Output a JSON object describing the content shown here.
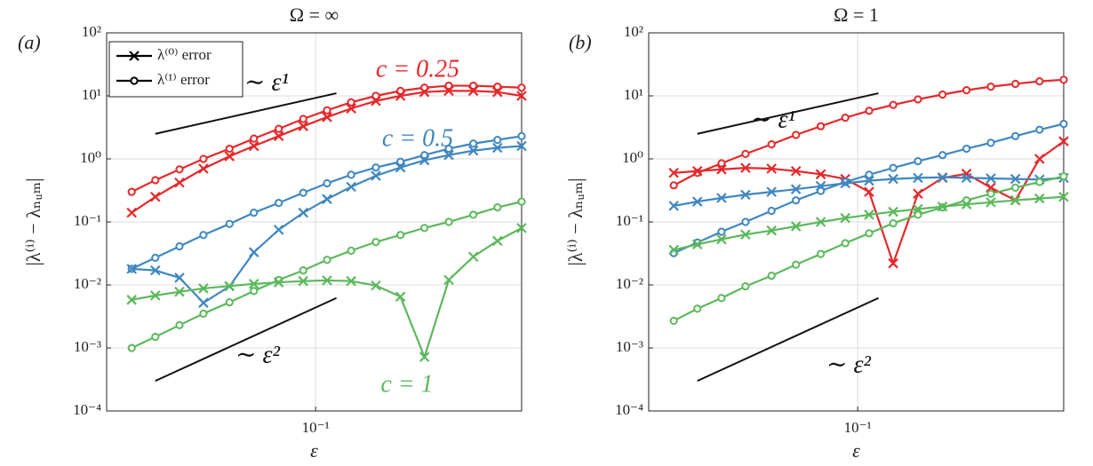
{
  "chart_data": [
    {
      "type": "line",
      "panel_label": "(a)",
      "title": "Ω = ∞",
      "xlabel": "ε",
      "ylabel": "|λ⁽ⁱ⁾ − λₙᵤₘ|",
      "log_x": true,
      "log_y": true,
      "grid": true,
      "xlim": [
        0.0245,
        0.4
      ],
      "ylim": [
        0.0001,
        100
      ],
      "xticks": [
        {
          "value": 0.1,
          "label": "10⁻¹"
        }
      ],
      "yticks": [
        {
          "value": 0.0001,
          "label": "10⁻⁴"
        },
        {
          "value": 0.001,
          "label": "10⁻³"
        },
        {
          "value": 0.01,
          "label": "10⁻²"
        },
        {
          "value": 0.1,
          "label": "10⁻¹"
        },
        {
          "value": 1,
          "label": "10⁰"
        },
        {
          "value": 10,
          "label": "10¹"
        },
        {
          "value": 100,
          "label": "10²"
        }
      ],
      "legend_position": "upper left",
      "legend": [
        {
          "label": "λ⁽⁰⁾ error",
          "marker": "x"
        },
        {
          "label": "λ⁽¹⁾ error",
          "marker": "o"
        }
      ],
      "annotations": [
        {
          "text": "∼ ε¹"
        },
        {
          "text": "c = 0.25",
          "color": "#e5282a"
        },
        {
          "text": "c = 0.5",
          "color": "#3f87c0"
        },
        {
          "text": "∼ ε²"
        },
        {
          "text": "c = 1",
          "color": "#5cb85c"
        }
      ],
      "guides": [
        {
          "x": [
            0.034,
            0.115
          ],
          "y": [
            2.5,
            11
          ]
        },
        {
          "x": [
            0.034,
            0.115
          ],
          "y": [
            0.0003,
            0.0062
          ]
        }
      ],
      "x": [
        0.029,
        0.034,
        0.04,
        0.047,
        0.056,
        0.066,
        0.078,
        0.092,
        0.108,
        0.127,
        0.15,
        0.177,
        0.208,
        0.245,
        0.289,
        0.34,
        0.4
      ],
      "series": [
        {
          "color": "#e5282a",
          "marker": "o",
          "values": [
            0.3,
            0.46,
            0.68,
            1.0,
            1.45,
            2.1,
            3.0,
            4.3,
            5.9,
            7.9,
            10,
            12,
            13.5,
            14.5,
            14.5,
            14,
            13.5
          ]
        },
        {
          "color": "#e5282a",
          "marker": "x",
          "values": [
            0.14,
            0.25,
            0.42,
            0.7,
            1.1,
            1.6,
            2.3,
            3.3,
            4.6,
            6.3,
            8.3,
            10,
            11.5,
            12,
            12,
            11.5,
            10
          ]
        },
        {
          "color": "#3f87c0",
          "marker": "o",
          "values": [
            0.018,
            0.027,
            0.041,
            0.062,
            0.093,
            0.14,
            0.2,
            0.29,
            0.41,
            0.56,
            0.73,
            0.9,
            1.15,
            1.45,
            1.75,
            2.0,
            2.3
          ]
        },
        {
          "color": "#3f87c0",
          "marker": "x",
          "values": [
            0.018,
            0.017,
            0.013,
            0.0052,
            0.0095,
            0.033,
            0.075,
            0.14,
            0.23,
            0.36,
            0.54,
            0.73,
            0.95,
            1.15,
            1.35,
            1.5,
            1.6
          ]
        },
        {
          "color": "#5cb85c",
          "marker": "o",
          "values": [
            0.001,
            0.0015,
            0.0023,
            0.0035,
            0.0053,
            0.008,
            0.012,
            0.017,
            0.025,
            0.035,
            0.048,
            0.062,
            0.08,
            0.1,
            0.13,
            0.17,
            0.21
          ]
        },
        {
          "color": "#5cb85c",
          "marker": "x",
          "values": [
            0.0058,
            0.0068,
            0.0078,
            0.0088,
            0.0096,
            0.0104,
            0.011,
            0.0115,
            0.0118,
            0.0115,
            0.0098,
            0.0065,
            0.00072,
            0.012,
            0.028,
            0.05,
            0.08
          ]
        }
      ]
    },
    {
      "type": "line",
      "panel_label": "(b)",
      "title": "Ω = 1",
      "xlabel": "ε",
      "ylabel": "|λ⁽ⁱ⁾ − λₙᵤₘ|",
      "log_x": true,
      "log_y": true,
      "grid": true,
      "xlim": [
        0.0245,
        0.4
      ],
      "ylim": [
        0.0001,
        100
      ],
      "xticks": [
        {
          "value": 0.1,
          "label": "10⁻¹"
        }
      ],
      "yticks": [
        {
          "value": 0.0001,
          "label": "10⁻⁴"
        },
        {
          "value": 0.001,
          "label": "10⁻³"
        },
        {
          "value": 0.01,
          "label": "10⁻²"
        },
        {
          "value": 0.1,
          "label": "10⁻¹"
        },
        {
          "value": 1,
          "label": "10⁰"
        },
        {
          "value": 10,
          "label": "10¹"
        },
        {
          "value": 100,
          "label": "10²"
        }
      ],
      "annotations": [
        {
          "text": "∼ ε¹"
        },
        {
          "text": "∼ ε²"
        }
      ],
      "guides": [
        {
          "x": [
            0.034,
            0.115
          ],
          "y": [
            2.5,
            11
          ]
        },
        {
          "x": [
            0.034,
            0.115
          ],
          "y": [
            0.0003,
            0.0062
          ]
        }
      ],
      "x": [
        0.029,
        0.034,
        0.04,
        0.047,
        0.056,
        0.066,
        0.078,
        0.092,
        0.108,
        0.127,
        0.15,
        0.177,
        0.208,
        0.245,
        0.289,
        0.34,
        0.4
      ],
      "series": [
        {
          "color": "#e5282a",
          "marker": "o",
          "values": [
            0.38,
            0.6,
            0.85,
            1.2,
            1.7,
            2.4,
            3.3,
            4.5,
            5.8,
            7.2,
            8.8,
            10.5,
            12.3,
            14,
            15.5,
            17,
            18
          ]
        },
        {
          "color": "#e5282a",
          "marker": "x",
          "values": [
            0.6,
            0.64,
            0.68,
            0.72,
            0.7,
            0.64,
            0.57,
            0.48,
            0.3,
            0.022,
            0.28,
            0.5,
            0.58,
            0.35,
            0.22,
            1.0,
            1.9
          ]
        },
        {
          "color": "#3f87c0",
          "marker": "o",
          "values": [
            0.032,
            0.047,
            0.07,
            0.1,
            0.15,
            0.22,
            0.31,
            0.43,
            0.56,
            0.72,
            0.92,
            1.15,
            1.45,
            1.8,
            2.3,
            2.9,
            3.6
          ]
        },
        {
          "color": "#3f87c0",
          "marker": "x",
          "values": [
            0.18,
            0.21,
            0.24,
            0.27,
            0.3,
            0.33,
            0.37,
            0.41,
            0.45,
            0.48,
            0.5,
            0.51,
            0.5,
            0.49,
            0.48,
            0.47,
            0.5
          ]
        },
        {
          "color": "#5cb85c",
          "marker": "o",
          "values": [
            0.0027,
            0.0042,
            0.0062,
            0.0095,
            0.014,
            0.021,
            0.031,
            0.046,
            0.066,
            0.095,
            0.13,
            0.17,
            0.22,
            0.28,
            0.35,
            0.43,
            0.53
          ]
        },
        {
          "color": "#5cb85c",
          "marker": "x",
          "values": [
            0.036,
            0.044,
            0.053,
            0.063,
            0.073,
            0.085,
            0.1,
            0.115,
            0.13,
            0.145,
            0.16,
            0.175,
            0.19,
            0.205,
            0.22,
            0.235,
            0.25
          ]
        }
      ]
    }
  ]
}
